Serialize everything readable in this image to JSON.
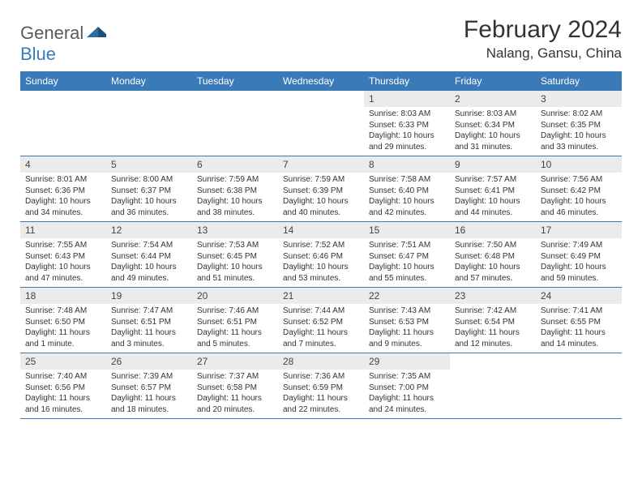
{
  "logo": {
    "general": "General",
    "blue": "Blue"
  },
  "title": "February 2024",
  "location": "Nalang, Gansu, China",
  "colors": {
    "header_bg": "#3a7ab8",
    "daynum_bg": "#ebebeb",
    "text": "#333333",
    "logo_gray": "#5a5a5a",
    "logo_blue": "#3a7ab8"
  },
  "weekdays": [
    "Sunday",
    "Monday",
    "Tuesday",
    "Wednesday",
    "Thursday",
    "Friday",
    "Saturday"
  ],
  "weeks": [
    [
      {
        "n": "",
        "sr": "",
        "ss": "",
        "dl": ""
      },
      {
        "n": "",
        "sr": "",
        "ss": "",
        "dl": ""
      },
      {
        "n": "",
        "sr": "",
        "ss": "",
        "dl": ""
      },
      {
        "n": "",
        "sr": "",
        "ss": "",
        "dl": ""
      },
      {
        "n": "1",
        "sr": "Sunrise: 8:03 AM",
        "ss": "Sunset: 6:33 PM",
        "dl": "Daylight: 10 hours and 29 minutes."
      },
      {
        "n": "2",
        "sr": "Sunrise: 8:03 AM",
        "ss": "Sunset: 6:34 PM",
        "dl": "Daylight: 10 hours and 31 minutes."
      },
      {
        "n": "3",
        "sr": "Sunrise: 8:02 AM",
        "ss": "Sunset: 6:35 PM",
        "dl": "Daylight: 10 hours and 33 minutes."
      }
    ],
    [
      {
        "n": "4",
        "sr": "Sunrise: 8:01 AM",
        "ss": "Sunset: 6:36 PM",
        "dl": "Daylight: 10 hours and 34 minutes."
      },
      {
        "n": "5",
        "sr": "Sunrise: 8:00 AM",
        "ss": "Sunset: 6:37 PM",
        "dl": "Daylight: 10 hours and 36 minutes."
      },
      {
        "n": "6",
        "sr": "Sunrise: 7:59 AM",
        "ss": "Sunset: 6:38 PM",
        "dl": "Daylight: 10 hours and 38 minutes."
      },
      {
        "n": "7",
        "sr": "Sunrise: 7:59 AM",
        "ss": "Sunset: 6:39 PM",
        "dl": "Daylight: 10 hours and 40 minutes."
      },
      {
        "n": "8",
        "sr": "Sunrise: 7:58 AM",
        "ss": "Sunset: 6:40 PM",
        "dl": "Daylight: 10 hours and 42 minutes."
      },
      {
        "n": "9",
        "sr": "Sunrise: 7:57 AM",
        "ss": "Sunset: 6:41 PM",
        "dl": "Daylight: 10 hours and 44 minutes."
      },
      {
        "n": "10",
        "sr": "Sunrise: 7:56 AM",
        "ss": "Sunset: 6:42 PM",
        "dl": "Daylight: 10 hours and 46 minutes."
      }
    ],
    [
      {
        "n": "11",
        "sr": "Sunrise: 7:55 AM",
        "ss": "Sunset: 6:43 PM",
        "dl": "Daylight: 10 hours and 47 minutes."
      },
      {
        "n": "12",
        "sr": "Sunrise: 7:54 AM",
        "ss": "Sunset: 6:44 PM",
        "dl": "Daylight: 10 hours and 49 minutes."
      },
      {
        "n": "13",
        "sr": "Sunrise: 7:53 AM",
        "ss": "Sunset: 6:45 PM",
        "dl": "Daylight: 10 hours and 51 minutes."
      },
      {
        "n": "14",
        "sr": "Sunrise: 7:52 AM",
        "ss": "Sunset: 6:46 PM",
        "dl": "Daylight: 10 hours and 53 minutes."
      },
      {
        "n": "15",
        "sr": "Sunrise: 7:51 AM",
        "ss": "Sunset: 6:47 PM",
        "dl": "Daylight: 10 hours and 55 minutes."
      },
      {
        "n": "16",
        "sr": "Sunrise: 7:50 AM",
        "ss": "Sunset: 6:48 PM",
        "dl": "Daylight: 10 hours and 57 minutes."
      },
      {
        "n": "17",
        "sr": "Sunrise: 7:49 AM",
        "ss": "Sunset: 6:49 PM",
        "dl": "Daylight: 10 hours and 59 minutes."
      }
    ],
    [
      {
        "n": "18",
        "sr": "Sunrise: 7:48 AM",
        "ss": "Sunset: 6:50 PM",
        "dl": "Daylight: 11 hours and 1 minute."
      },
      {
        "n": "19",
        "sr": "Sunrise: 7:47 AM",
        "ss": "Sunset: 6:51 PM",
        "dl": "Daylight: 11 hours and 3 minutes."
      },
      {
        "n": "20",
        "sr": "Sunrise: 7:46 AM",
        "ss": "Sunset: 6:51 PM",
        "dl": "Daylight: 11 hours and 5 minutes."
      },
      {
        "n": "21",
        "sr": "Sunrise: 7:44 AM",
        "ss": "Sunset: 6:52 PM",
        "dl": "Daylight: 11 hours and 7 minutes."
      },
      {
        "n": "22",
        "sr": "Sunrise: 7:43 AM",
        "ss": "Sunset: 6:53 PM",
        "dl": "Daylight: 11 hours and 9 minutes."
      },
      {
        "n": "23",
        "sr": "Sunrise: 7:42 AM",
        "ss": "Sunset: 6:54 PM",
        "dl": "Daylight: 11 hours and 12 minutes."
      },
      {
        "n": "24",
        "sr": "Sunrise: 7:41 AM",
        "ss": "Sunset: 6:55 PM",
        "dl": "Daylight: 11 hours and 14 minutes."
      }
    ],
    [
      {
        "n": "25",
        "sr": "Sunrise: 7:40 AM",
        "ss": "Sunset: 6:56 PM",
        "dl": "Daylight: 11 hours and 16 minutes."
      },
      {
        "n": "26",
        "sr": "Sunrise: 7:39 AM",
        "ss": "Sunset: 6:57 PM",
        "dl": "Daylight: 11 hours and 18 minutes."
      },
      {
        "n": "27",
        "sr": "Sunrise: 7:37 AM",
        "ss": "Sunset: 6:58 PM",
        "dl": "Daylight: 11 hours and 20 minutes."
      },
      {
        "n": "28",
        "sr": "Sunrise: 7:36 AM",
        "ss": "Sunset: 6:59 PM",
        "dl": "Daylight: 11 hours and 22 minutes."
      },
      {
        "n": "29",
        "sr": "Sunrise: 7:35 AM",
        "ss": "Sunset: 7:00 PM",
        "dl": "Daylight: 11 hours and 24 minutes."
      },
      {
        "n": "",
        "sr": "",
        "ss": "",
        "dl": ""
      },
      {
        "n": "",
        "sr": "",
        "ss": "",
        "dl": ""
      }
    ]
  ]
}
